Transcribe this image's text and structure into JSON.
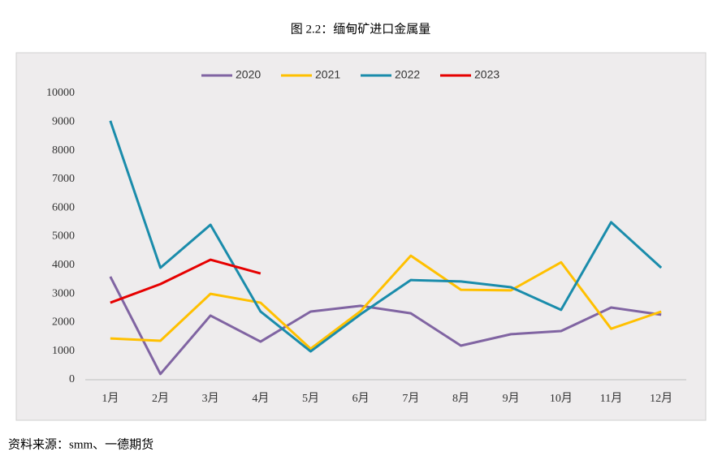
{
  "chart_data": {
    "type": "line",
    "title": "图 2.2：缅甸矿进口金属量",
    "categories": [
      "1月",
      "2月",
      "3月",
      "4月",
      "5月",
      "6月",
      "7月",
      "8月",
      "9月",
      "10月",
      "11月",
      "12月"
    ],
    "series": [
      {
        "name": "2020",
        "color": "#8064a2",
        "values": [
          3600,
          200,
          2240,
          1330,
          2380,
          2580,
          2320,
          1190,
          1590,
          1700,
          2520,
          2270
        ]
      },
      {
        "name": "2021",
        "color": "#ffc000",
        "values": [
          1440,
          1360,
          3000,
          2690,
          1080,
          2400,
          4330,
          3140,
          3120,
          4100,
          1780,
          2380
        ]
      },
      {
        "name": "2022",
        "color": "#1a8cab",
        "values": [
          9040,
          3910,
          5410,
          2380,
          990,
          2290,
          3480,
          3430,
          3230,
          2440,
          5500,
          3910
        ]
      },
      {
        "name": "2023",
        "color": "#e60000",
        "values": [
          2690,
          3340,
          4190,
          3710,
          null,
          null,
          null,
          null,
          null,
          null,
          null,
          null
        ]
      }
    ],
    "ylim": [
      0,
      10000
    ],
    "yticks": [
      0,
      1000,
      2000,
      3000,
      4000,
      5000,
      6000,
      7000,
      8000,
      9000,
      10000
    ],
    "legend": "top",
    "source": "资料来源：smm、一德期货"
  }
}
